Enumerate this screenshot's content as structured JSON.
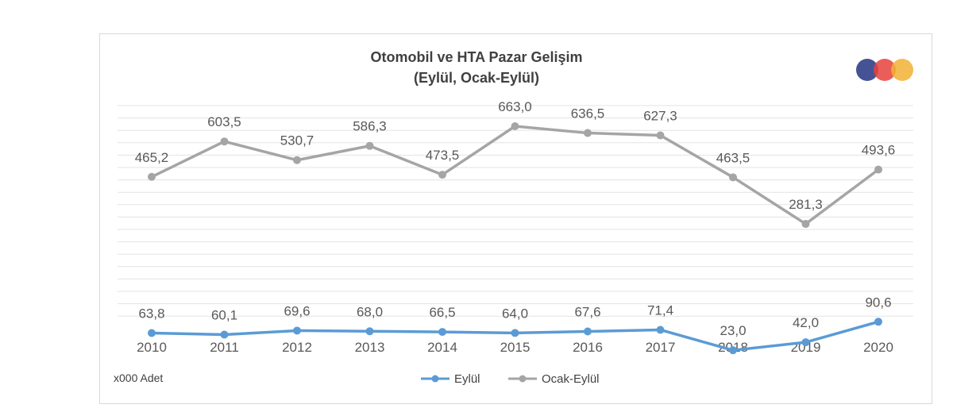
{
  "chart_data": {
    "type": "line",
    "title": "Otomobil ve HTA Pazar Gelişim",
    "subtitle": "(Eylül, Ocak-Eylül)",
    "unit_note": "x000 Adet",
    "categories": [
      "2010",
      "2011",
      "2012",
      "2013",
      "2014",
      "2015",
      "2016",
      "2017",
      "2018",
      "2019",
      "2020"
    ],
    "series": [
      {
        "name": "Eylül",
        "color": "#5b9bd5",
        "values": [
          63.8,
          60.1,
          69.6,
          68.0,
          66.5,
          64.0,
          67.6,
          71.4,
          23.0,
          42.0,
          90.6
        ],
        "labels": [
          "63,8",
          "60,1",
          "69,6",
          "68,0",
          "66,5",
          "64,0",
          "67,6",
          "71,4",
          "23,0",
          "42,0",
          "90,6"
        ]
      },
      {
        "name": "Ocak-Eylül",
        "color": "#a5a5a5",
        "values": [
          465.2,
          603.5,
          530.7,
          586.3,
          473.5,
          663.0,
          636.5,
          627.3,
          463.5,
          281.3,
          493.6
        ],
        "labels": [
          "465,2",
          "603,5",
          "530,7",
          "586,3",
          "473,5",
          "663,0",
          "636,5",
          "627,3",
          "463,5",
          "281,3",
          "493,6"
        ]
      }
    ],
    "legend_position": "bottom",
    "grid": true
  },
  "logo": {
    "colors": [
      "#3b4a8f",
      "#e8413c",
      "#f2b133"
    ]
  }
}
